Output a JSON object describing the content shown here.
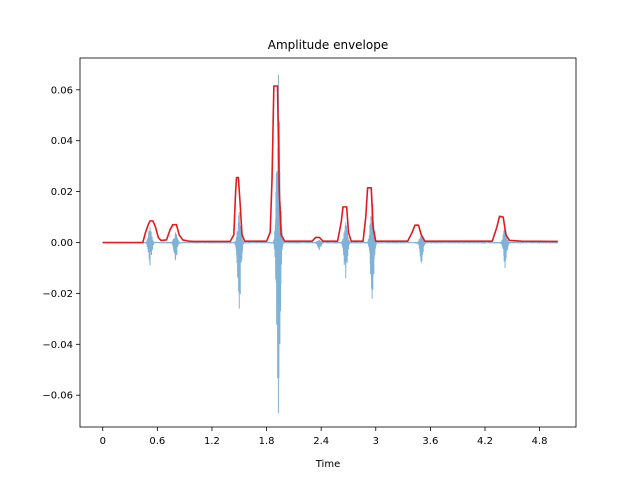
{
  "chart_data": {
    "type": "line",
    "title": "Amplitude envelope",
    "xlabel": "Time",
    "ylabel": "",
    "xlim": [
      -0.25,
      5.2
    ],
    "ylim": [
      -0.0725,
      0.0725
    ],
    "x_ticks": [
      0,
      0.6,
      1.2,
      1.8,
      2.4,
      3.0,
      3.6,
      4.2,
      4.8
    ],
    "x_tick_labels": [
      "0",
      "0.6",
      "1.2",
      "1.8",
      "2.4",
      "3",
      "3.6",
      "4.2",
      "4.8"
    ],
    "y_ticks": [
      -0.06,
      -0.04,
      -0.02,
      0.0,
      0.02,
      0.04,
      0.06
    ],
    "y_tick_labels": [
      "−0.06",
      "−0.04",
      "−0.02",
      "0.00",
      "0.02",
      "0.04",
      "0.06"
    ],
    "grid": false,
    "series": [
      {
        "kind": "waveform",
        "color": "#7fb2d6",
        "duration": 5.0,
        "events": [
          {
            "t": 0.52,
            "pos": 0.006,
            "neg": -0.009
          },
          {
            "t": 0.8,
            "pos": 0.004,
            "neg": -0.007
          },
          {
            "t": 1.5,
            "pos": 0.012,
            "neg": -0.026
          },
          {
            "t": 1.93,
            "pos": 0.066,
            "neg": -0.067
          },
          {
            "t": 2.38,
            "pos": 0.001,
            "neg": -0.003
          },
          {
            "t": 2.67,
            "pos": 0.008,
            "neg": -0.014
          },
          {
            "t": 2.96,
            "pos": 0.018,
            "neg": -0.022
          },
          {
            "t": 3.5,
            "pos": 0.003,
            "neg": -0.008
          },
          {
            "t": 4.42,
            "pos": 0.006,
            "neg": -0.01
          }
        ]
      },
      {
        "kind": "envelope",
        "color": "#e31a1c",
        "points": [
          [
            0.0,
            0.0
          ],
          [
            0.44,
            0.0
          ],
          [
            0.47,
            0.004
          ],
          [
            0.5,
            0.007
          ],
          [
            0.52,
            0.0085
          ],
          [
            0.55,
            0.0085
          ],
          [
            0.58,
            0.006
          ],
          [
            0.61,
            0.002
          ],
          [
            0.64,
            0.0008
          ],
          [
            0.7,
            0.001
          ],
          [
            0.74,
            0.005
          ],
          [
            0.77,
            0.007
          ],
          [
            0.81,
            0.007
          ],
          [
            0.84,
            0.003
          ],
          [
            0.88,
            0.001
          ],
          [
            0.95,
            0.0005
          ],
          [
            1.0,
            0.0004
          ],
          [
            1.4,
            0.0004
          ],
          [
            1.44,
            0.003
          ],
          [
            1.46,
            0.02
          ],
          [
            1.47,
            0.0255
          ],
          [
            1.49,
            0.0255
          ],
          [
            1.51,
            0.015
          ],
          [
            1.53,
            0.003
          ],
          [
            1.56,
            0.0005
          ],
          [
            1.8,
            0.0005
          ],
          [
            1.84,
            0.004
          ],
          [
            1.86,
            0.025
          ],
          [
            1.88,
            0.0615
          ],
          [
            1.92,
            0.0615
          ],
          [
            1.94,
            0.02
          ],
          [
            1.96,
            0.003
          ],
          [
            2.0,
            0.0005
          ],
          [
            2.3,
            0.0005
          ],
          [
            2.34,
            0.002
          ],
          [
            2.38,
            0.002
          ],
          [
            2.42,
            0.0005
          ],
          [
            2.58,
            0.0005
          ],
          [
            2.62,
            0.008
          ],
          [
            2.64,
            0.014
          ],
          [
            2.68,
            0.014
          ],
          [
            2.7,
            0.004
          ],
          [
            2.73,
            0.0005
          ],
          [
            2.86,
            0.0005
          ],
          [
            2.89,
            0.01
          ],
          [
            2.91,
            0.0215
          ],
          [
            2.95,
            0.0215
          ],
          [
            2.97,
            0.006
          ],
          [
            3.0,
            0.0005
          ],
          [
            3.35,
            0.0005
          ],
          [
            3.4,
            0.004
          ],
          [
            3.43,
            0.0068
          ],
          [
            3.47,
            0.0068
          ],
          [
            3.5,
            0.003
          ],
          [
            3.54,
            0.0005
          ],
          [
            4.28,
            0.0005
          ],
          [
            4.33,
            0.006
          ],
          [
            4.36,
            0.0103
          ],
          [
            4.4,
            0.01
          ],
          [
            4.43,
            0.003
          ],
          [
            4.47,
            0.0008
          ],
          [
            4.6,
            0.0005
          ],
          [
            5.0,
            0.0004
          ]
        ]
      }
    ]
  }
}
